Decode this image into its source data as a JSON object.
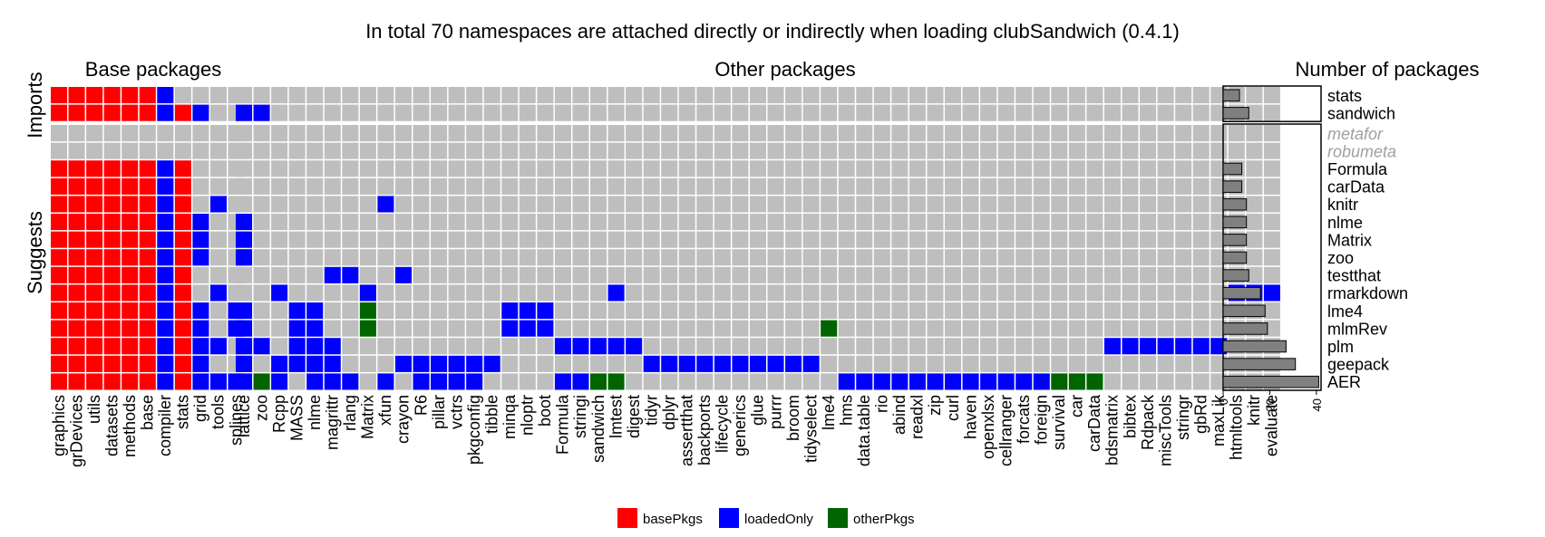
{
  "chart_data": {
    "type": "heatmap",
    "title": "In total 70 namespaces are attached directly or indirectly when loading clubSandwich (0.4.1)",
    "panel_titles": {
      "base": "Base packages",
      "other": "Other packages",
      "count": "Number of packages"
    },
    "group_labels": {
      "imports": "Imports",
      "suggests": "Suggests"
    },
    "base_columns": [
      "graphics",
      "grDevices",
      "utils",
      "datasets",
      "methods",
      "base",
      "compiler",
      "stats",
      "grid",
      "tools",
      "splines"
    ],
    "other_columns": [
      "lattice",
      "zoo",
      "Rcpp",
      "MASS",
      "nlme",
      "magrittr",
      "rlang",
      "Matrix",
      "xfun",
      "crayon",
      "R6",
      "pillar",
      "vctrs",
      "pkgconfig",
      "tibble",
      "minqa",
      "nloptr",
      "boot",
      "Formula",
      "stringi",
      "sandwich",
      "lmtest",
      "digest",
      "tidyr",
      "dplyr",
      "assertthat",
      "backports",
      "lifecycle",
      "generics",
      "glue",
      "purrr",
      "broom",
      "tidyselect",
      "lme4",
      "hms",
      "data.table",
      "rio",
      "abind",
      "readxl",
      "zip",
      "curl",
      "haven",
      "openxlsx",
      "cellranger",
      "forcats",
      "foreign",
      "survival",
      "car",
      "carData",
      "bdsmatrix",
      "bibtex",
      "Rdpack",
      "miscTools",
      "stringr",
      "gbRd",
      "maxLik",
      "htmltools",
      "knitr",
      "evaluate"
    ],
    "legend": [
      {
        "key": "B",
        "label": "basePkgs",
        "color": "#ff0000"
      },
      {
        "key": "L",
        "label": "loadedOnly",
        "color": "#0000ff"
      },
      {
        "key": "O",
        "label": "otherPkgs",
        "color": "#006400"
      }
    ],
    "empty_color": "#bebebe",
    "bar_color": "#808080",
    "count_axis": {
      "ticks": [
        0,
        20,
        40
      ],
      "xlim": [
        0,
        42
      ]
    },
    "imports": [
      {
        "name": "stats",
        "count": 7,
        "muted": false,
        "cells": "BBBBBBL.........................................................................."
      },
      {
        "name": "sandwich",
        "count": 11,
        "muted": false,
        "cells": "BBBBBBLBL.LL........................................................................"
      }
    ],
    "suggests": [
      {
        "name": "metafor",
        "count": 0,
        "muted": true,
        "cells": ""
      },
      {
        "name": "robumeta",
        "count": 0,
        "muted": true,
        "cells": ""
      },
      {
        "name": "Formula",
        "count": 8,
        "muted": false,
        "cells": "BBBBBBLB"
      },
      {
        "name": "carData",
        "count": 8,
        "muted": false,
        "cells": "BBBBBBLB"
      },
      {
        "name": "knitr",
        "count": 10,
        "muted": false,
        "cells": "BBBBBBLB.L........L"
      },
      {
        "name": "nlme",
        "count": 10,
        "muted": false,
        "cells": "BBBBBBLBL.. L"
      },
      {
        "name": "Matrix",
        "count": 10,
        "muted": false,
        "cells": "BBBBBBLBL.. L"
      },
      {
        "name": "zoo",
        "count": 10,
        "muted": false,
        "cells": "BBBBBBLBL.. L"
      },
      {
        "name": "testthat",
        "count": 11,
        "muted": false,
        "cells": "BBBBBBLB.......LL....L"
      },
      {
        "name": "rmarkdown",
        "count": 16,
        "muted": false,
        "cells": "BBBBBBLB.L....L.....L.L.............L"
      },
      {
        "name": "lme4",
        "count": 18,
        "muted": false,
        "cells": "BBBBBBLBL.LL..L.LL...O..........LLL"
      },
      {
        "name": "mlmRev",
        "count": 19,
        "muted": false,
        "cells": "BBBBBBLBL.LL..L.LL...O..........LLL"
      },
      {
        "name": "plm",
        "count": 27,
        "muted": false,
        "cells": "BBBBBBLBLL.LL.LLL"
      },
      {
        "name": "geepack",
        "count": 31,
        "muted": false,
        "cells": "BBBBBBLBL..LL.LLLL"
      },
      {
        "name": "AER",
        "count": 41,
        "muted": false,
        "cells": "BBBBBBLBLLLLOL"
      }
    ]
  }
}
